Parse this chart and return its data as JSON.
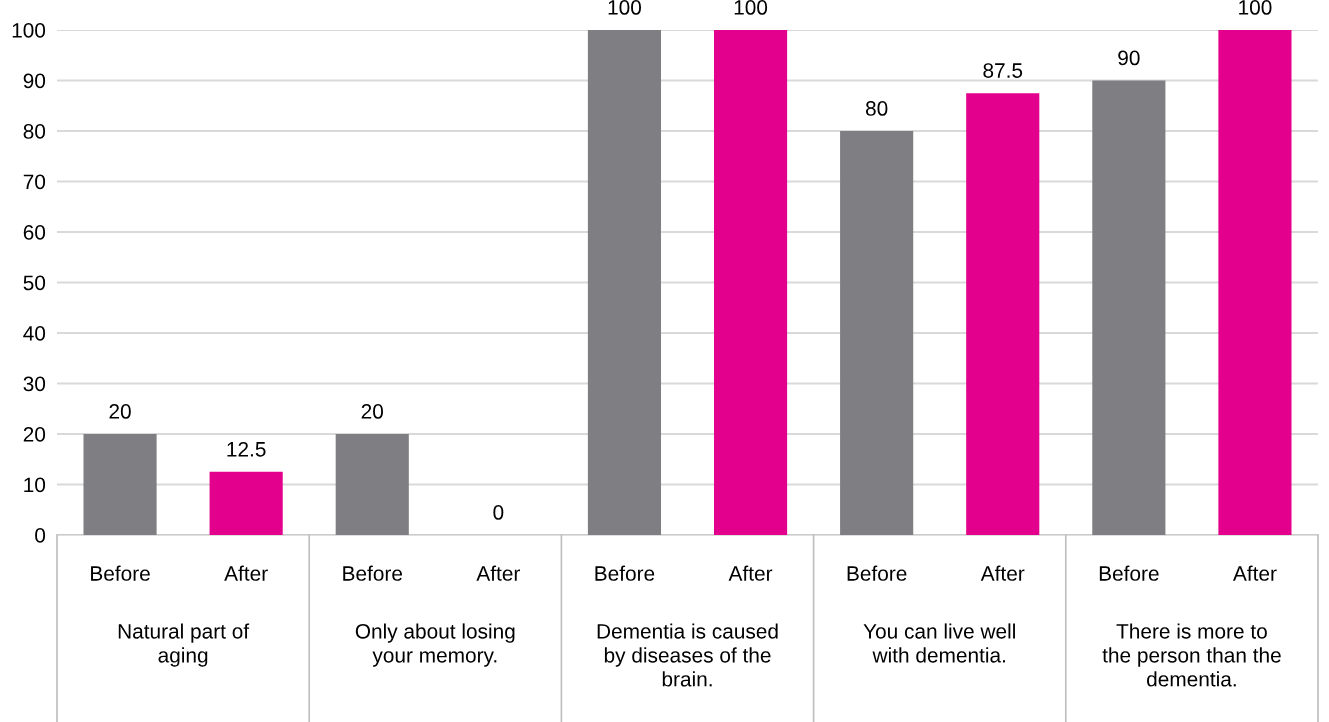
{
  "chart_data": {
    "type": "bar",
    "categories": [
      "Before",
      "After",
      "Before",
      "After",
      "Before",
      "After",
      "Before",
      "After",
      "Before",
      "After"
    ],
    "values": [
      20,
      12.5,
      20,
      0,
      100,
      100,
      80,
      87.5,
      90,
      100
    ],
    "colors": [
      "#7f7e83",
      "#e3008c",
      "#7f7e83",
      "#e3008c",
      "#7f7e83",
      "#e3008c",
      "#7f7e83",
      "#e3008c",
      "#7f7e83",
      "#e3008c"
    ],
    "annotations": [
      "Natural part of\naging",
      "Only about losing\nyour memory.",
      "Dementia is caused\nby diseases of the\nbrain.",
      "You can live well\nwith dementia.",
      "There is more to\nthe person than the\ndementia."
    ],
    "ylim": [
      0,
      100
    ],
    "yticks": [
      0,
      10,
      20,
      30,
      40,
      50,
      60,
      70,
      80,
      90,
      100
    ],
    "grid": "y",
    "data_labels": true,
    "legend": false
  }
}
